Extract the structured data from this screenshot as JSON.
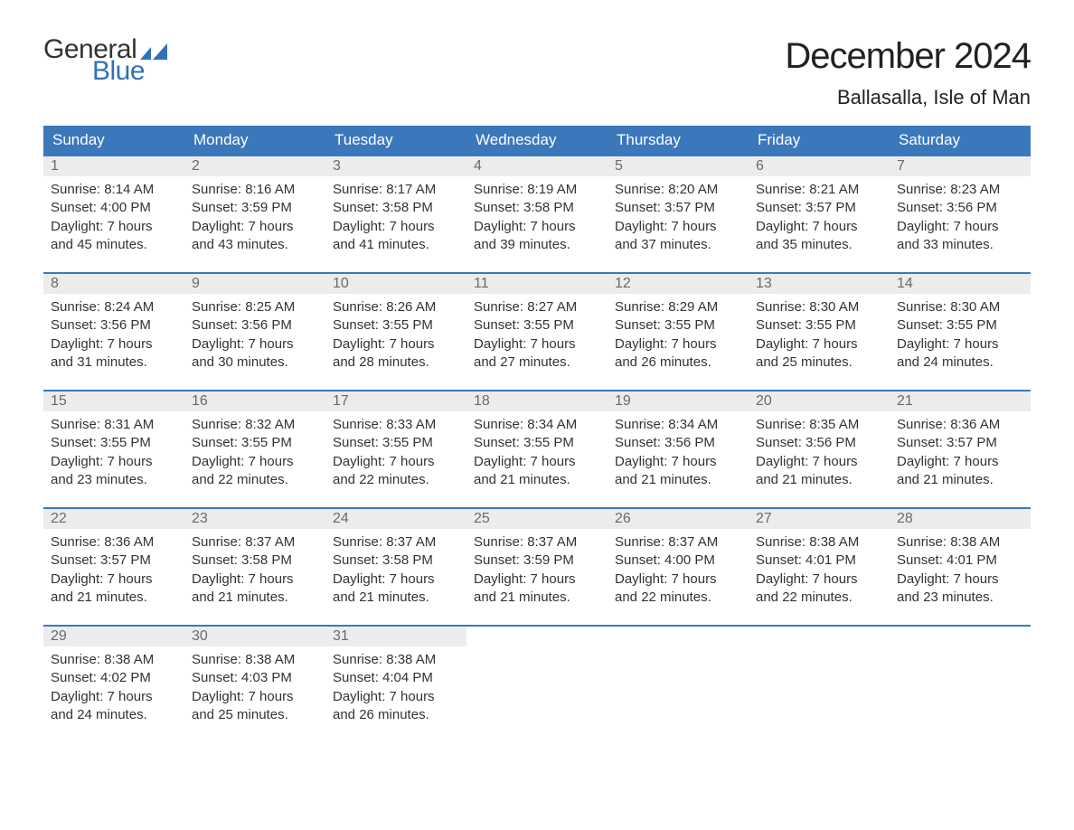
{
  "brand": {
    "word1": "General",
    "word2": "Blue",
    "flag_color": "#2f72b8",
    "word1_color": "#333333",
    "word2_color": "#2f72b8"
  },
  "title": "December 2024",
  "location": "Ballasalla, Isle of Man",
  "colors": {
    "header_bg": "#3b78bb",
    "header_text": "#ffffff",
    "daynum_bg": "#ececec",
    "daynum_text": "#6a6a6a",
    "body_text": "#333333",
    "row_border": "#3b78bb",
    "page_bg": "#ffffff"
  },
  "weekdays": [
    "Sunday",
    "Monday",
    "Tuesday",
    "Wednesday",
    "Thursday",
    "Friday",
    "Saturday"
  ],
  "weeks": [
    [
      {
        "n": "1",
        "sunrise": "8:14 AM",
        "sunset": "4:00 PM",
        "dl1": "7 hours",
        "dl2": "and 45 minutes."
      },
      {
        "n": "2",
        "sunrise": "8:16 AM",
        "sunset": "3:59 PM",
        "dl1": "7 hours",
        "dl2": "and 43 minutes."
      },
      {
        "n": "3",
        "sunrise": "8:17 AM",
        "sunset": "3:58 PM",
        "dl1": "7 hours",
        "dl2": "and 41 minutes."
      },
      {
        "n": "4",
        "sunrise": "8:19 AM",
        "sunset": "3:58 PM",
        "dl1": "7 hours",
        "dl2": "and 39 minutes."
      },
      {
        "n": "5",
        "sunrise": "8:20 AM",
        "sunset": "3:57 PM",
        "dl1": "7 hours",
        "dl2": "and 37 minutes."
      },
      {
        "n": "6",
        "sunrise": "8:21 AM",
        "sunset": "3:57 PM",
        "dl1": "7 hours",
        "dl2": "and 35 minutes."
      },
      {
        "n": "7",
        "sunrise": "8:23 AM",
        "sunset": "3:56 PM",
        "dl1": "7 hours",
        "dl2": "and 33 minutes."
      }
    ],
    [
      {
        "n": "8",
        "sunrise": "8:24 AM",
        "sunset": "3:56 PM",
        "dl1": "7 hours",
        "dl2": "and 31 minutes."
      },
      {
        "n": "9",
        "sunrise": "8:25 AM",
        "sunset": "3:56 PM",
        "dl1": "7 hours",
        "dl2": "and 30 minutes."
      },
      {
        "n": "10",
        "sunrise": "8:26 AM",
        "sunset": "3:55 PM",
        "dl1": "7 hours",
        "dl2": "and 28 minutes."
      },
      {
        "n": "11",
        "sunrise": "8:27 AM",
        "sunset": "3:55 PM",
        "dl1": "7 hours",
        "dl2": "and 27 minutes."
      },
      {
        "n": "12",
        "sunrise": "8:29 AM",
        "sunset": "3:55 PM",
        "dl1": "7 hours",
        "dl2": "and 26 minutes."
      },
      {
        "n": "13",
        "sunrise": "8:30 AM",
        "sunset": "3:55 PM",
        "dl1": "7 hours",
        "dl2": "and 25 minutes."
      },
      {
        "n": "14",
        "sunrise": "8:30 AM",
        "sunset": "3:55 PM",
        "dl1": "7 hours",
        "dl2": "and 24 minutes."
      }
    ],
    [
      {
        "n": "15",
        "sunrise": "8:31 AM",
        "sunset": "3:55 PM",
        "dl1": "7 hours",
        "dl2": "and 23 minutes."
      },
      {
        "n": "16",
        "sunrise": "8:32 AM",
        "sunset": "3:55 PM",
        "dl1": "7 hours",
        "dl2": "and 22 minutes."
      },
      {
        "n": "17",
        "sunrise": "8:33 AM",
        "sunset": "3:55 PM",
        "dl1": "7 hours",
        "dl2": "and 22 minutes."
      },
      {
        "n": "18",
        "sunrise": "8:34 AM",
        "sunset": "3:55 PM",
        "dl1": "7 hours",
        "dl2": "and 21 minutes."
      },
      {
        "n": "19",
        "sunrise": "8:34 AM",
        "sunset": "3:56 PM",
        "dl1": "7 hours",
        "dl2": "and 21 minutes."
      },
      {
        "n": "20",
        "sunrise": "8:35 AM",
        "sunset": "3:56 PM",
        "dl1": "7 hours",
        "dl2": "and 21 minutes."
      },
      {
        "n": "21",
        "sunrise": "8:36 AM",
        "sunset": "3:57 PM",
        "dl1": "7 hours",
        "dl2": "and 21 minutes."
      }
    ],
    [
      {
        "n": "22",
        "sunrise": "8:36 AM",
        "sunset": "3:57 PM",
        "dl1": "7 hours",
        "dl2": "and 21 minutes."
      },
      {
        "n": "23",
        "sunrise": "8:37 AM",
        "sunset": "3:58 PM",
        "dl1": "7 hours",
        "dl2": "and 21 minutes."
      },
      {
        "n": "24",
        "sunrise": "8:37 AM",
        "sunset": "3:58 PM",
        "dl1": "7 hours",
        "dl2": "and 21 minutes."
      },
      {
        "n": "25",
        "sunrise": "8:37 AM",
        "sunset": "3:59 PM",
        "dl1": "7 hours",
        "dl2": "and 21 minutes."
      },
      {
        "n": "26",
        "sunrise": "8:37 AM",
        "sunset": "4:00 PM",
        "dl1": "7 hours",
        "dl2": "and 22 minutes."
      },
      {
        "n": "27",
        "sunrise": "8:38 AM",
        "sunset": "4:01 PM",
        "dl1": "7 hours",
        "dl2": "and 22 minutes."
      },
      {
        "n": "28",
        "sunrise": "8:38 AM",
        "sunset": "4:01 PM",
        "dl1": "7 hours",
        "dl2": "and 23 minutes."
      }
    ],
    [
      {
        "n": "29",
        "sunrise": "8:38 AM",
        "sunset": "4:02 PM",
        "dl1": "7 hours",
        "dl2": "and 24 minutes."
      },
      {
        "n": "30",
        "sunrise": "8:38 AM",
        "sunset": "4:03 PM",
        "dl1": "7 hours",
        "dl2": "and 25 minutes."
      },
      {
        "n": "31",
        "sunrise": "8:38 AM",
        "sunset": "4:04 PM",
        "dl1": "7 hours",
        "dl2": "and 26 minutes."
      },
      null,
      null,
      null,
      null
    ]
  ],
  "labels": {
    "sunrise": "Sunrise: ",
    "sunset": "Sunset: ",
    "daylight": "Daylight: "
  }
}
